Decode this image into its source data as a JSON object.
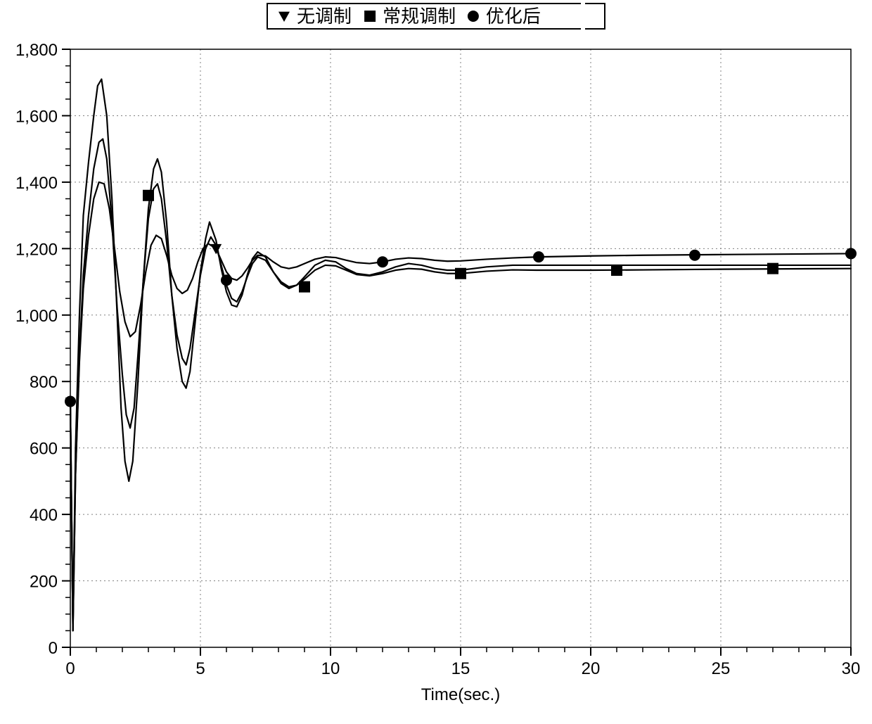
{
  "chart": {
    "type": "line",
    "background_color": "#ffffff",
    "grid_color": "#808080",
    "axis_color": "#000000",
    "series_color": "#000000",
    "xlabel": "Time(sec.)",
    "xlabel_fontsize": 24,
    "xlim": [
      0,
      30
    ],
    "xtick_step": 5,
    "x_minor_ticks": 5,
    "ylim": [
      0,
      1800
    ],
    "ytick_step": 200,
    "y_minor_ticks": 4,
    "tick_label_fontsize": 24,
    "line_width": 2.2,
    "marker_size": 8,
    "legend": {
      "items": [
        {
          "label": "无调制",
          "marker": "triangle-down"
        },
        {
          "label": "常规调制",
          "marker": "square"
        },
        {
          "label": "优化后",
          "marker": "circle"
        }
      ],
      "fontsize": 26,
      "border_color": "#000000",
      "position": "top-center"
    },
    "series": [
      {
        "name": "no_modulation",
        "marker": "triangle-down",
        "markers_x": [
          5.6
        ],
        "markers_y": [
          1200
        ],
        "data": [
          [
            0.0,
            740
          ],
          [
            0.1,
            50
          ],
          [
            0.2,
            600
          ],
          [
            0.35,
            1000
          ],
          [
            0.5,
            1300
          ],
          [
            0.7,
            1460
          ],
          [
            0.9,
            1600
          ],
          [
            1.05,
            1690
          ],
          [
            1.2,
            1710
          ],
          [
            1.4,
            1600
          ],
          [
            1.6,
            1350
          ],
          [
            1.8,
            1000
          ],
          [
            1.95,
            720
          ],
          [
            2.1,
            560
          ],
          [
            2.25,
            500
          ],
          [
            2.4,
            560
          ],
          [
            2.6,
            800
          ],
          [
            2.8,
            1100
          ],
          [
            3.0,
            1320
          ],
          [
            3.2,
            1440
          ],
          [
            3.35,
            1470
          ],
          [
            3.5,
            1430
          ],
          [
            3.7,
            1280
          ],
          [
            3.9,
            1060
          ],
          [
            4.1,
            900
          ],
          [
            4.3,
            800
          ],
          [
            4.45,
            780
          ],
          [
            4.6,
            830
          ],
          [
            4.8,
            980
          ],
          [
            5.0,
            1130
          ],
          [
            5.2,
            1230
          ],
          [
            5.35,
            1280
          ],
          [
            5.6,
            1225
          ],
          [
            5.8,
            1140
          ],
          [
            6.0,
            1070
          ],
          [
            6.2,
            1030
          ],
          [
            6.4,
            1025
          ],
          [
            6.6,
            1060
          ],
          [
            6.8,
            1120
          ],
          [
            7.0,
            1170
          ],
          [
            7.2,
            1190
          ],
          [
            7.5,
            1175
          ],
          [
            7.8,
            1130
          ],
          [
            8.1,
            1095
          ],
          [
            8.4,
            1080
          ],
          [
            8.7,
            1090
          ],
          [
            9.0,
            1115
          ],
          [
            9.4,
            1150
          ],
          [
            9.8,
            1165
          ],
          [
            10.2,
            1160
          ],
          [
            10.6,
            1140
          ],
          [
            11.0,
            1125
          ],
          [
            11.5,
            1120
          ],
          [
            12.0,
            1130
          ],
          [
            12.5,
            1145
          ],
          [
            13.0,
            1155
          ],
          [
            13.5,
            1150
          ],
          [
            14.0,
            1140
          ],
          [
            14.5,
            1135
          ],
          [
            15.0,
            1135
          ],
          [
            16.0,
            1145
          ],
          [
            17.0,
            1150
          ],
          [
            18.0,
            1150
          ],
          [
            20.0,
            1150
          ],
          [
            22.0,
            1150
          ],
          [
            25.0,
            1150
          ],
          [
            30.0,
            1150
          ]
        ]
      },
      {
        "name": "conventional",
        "marker": "square",
        "markers_x": [
          3.0,
          9.0,
          15.0,
          21.0,
          27.0
        ],
        "markers_y": [
          1360,
          1085,
          1125,
          1135,
          1140
        ],
        "data": [
          [
            0.0,
            740
          ],
          [
            0.1,
            50
          ],
          [
            0.2,
            520
          ],
          [
            0.35,
            880
          ],
          [
            0.5,
            1120
          ],
          [
            0.7,
            1300
          ],
          [
            0.9,
            1440
          ],
          [
            1.1,
            1520
          ],
          [
            1.25,
            1530
          ],
          [
            1.4,
            1470
          ],
          [
            1.6,
            1280
          ],
          [
            1.8,
            1020
          ],
          [
            2.0,
            820
          ],
          [
            2.15,
            700
          ],
          [
            2.3,
            660
          ],
          [
            2.45,
            720
          ],
          [
            2.6,
            880
          ],
          [
            2.8,
            1100
          ],
          [
            3.0,
            1290
          ],
          [
            3.2,
            1380
          ],
          [
            3.35,
            1395
          ],
          [
            3.5,
            1350
          ],
          [
            3.7,
            1220
          ],
          [
            3.9,
            1060
          ],
          [
            4.1,
            940
          ],
          [
            4.3,
            870
          ],
          [
            4.45,
            850
          ],
          [
            4.6,
            900
          ],
          [
            4.8,
            1010
          ],
          [
            5.0,
            1120
          ],
          [
            5.2,
            1200
          ],
          [
            5.4,
            1235
          ],
          [
            5.6,
            1210
          ],
          [
            5.8,
            1150
          ],
          [
            6.0,
            1090
          ],
          [
            6.2,
            1050
          ],
          [
            6.4,
            1040
          ],
          [
            6.6,
            1070
          ],
          [
            6.8,
            1115
          ],
          [
            7.0,
            1155
          ],
          [
            7.2,
            1175
          ],
          [
            7.5,
            1165
          ],
          [
            7.8,
            1130
          ],
          [
            8.1,
            1100
          ],
          [
            8.4,
            1085
          ],
          [
            8.7,
            1090
          ],
          [
            9.0,
            1108
          ],
          [
            9.4,
            1135
          ],
          [
            9.8,
            1150
          ],
          [
            10.2,
            1148
          ],
          [
            10.6,
            1135
          ],
          [
            11.0,
            1122
          ],
          [
            11.5,
            1118
          ],
          [
            12.0,
            1125
          ],
          [
            12.5,
            1135
          ],
          [
            13.0,
            1140
          ],
          [
            13.5,
            1138
          ],
          [
            14.0,
            1130
          ],
          [
            14.5,
            1125
          ],
          [
            15.0,
            1125
          ],
          [
            16.0,
            1132
          ],
          [
            17.0,
            1136
          ],
          [
            18.0,
            1135
          ],
          [
            20.0,
            1135
          ],
          [
            22.0,
            1136
          ],
          [
            25.0,
            1138
          ],
          [
            30.0,
            1140
          ]
        ]
      },
      {
        "name": "optimized",
        "marker": "circle",
        "markers_x": [
          0.0,
          6.0,
          12.0,
          18.0,
          24.0,
          30.0
        ],
        "markers_y": [
          740,
          1105,
          1160,
          1175,
          1180,
          1185
        ],
        "data": [
          [
            0.0,
            740
          ],
          [
            0.1,
            50
          ],
          [
            0.2,
            520
          ],
          [
            0.35,
            860
          ],
          [
            0.5,
            1080
          ],
          [
            0.7,
            1240
          ],
          [
            0.9,
            1350
          ],
          [
            1.1,
            1400
          ],
          [
            1.3,
            1395
          ],
          [
            1.5,
            1320
          ],
          [
            1.7,
            1200
          ],
          [
            1.9,
            1070
          ],
          [
            2.1,
            980
          ],
          [
            2.3,
            935
          ],
          [
            2.5,
            950
          ],
          [
            2.7,
            1030
          ],
          [
            2.9,
            1130
          ],
          [
            3.1,
            1210
          ],
          [
            3.3,
            1240
          ],
          [
            3.5,
            1230
          ],
          [
            3.7,
            1180
          ],
          [
            3.9,
            1120
          ],
          [
            4.1,
            1080
          ],
          [
            4.3,
            1065
          ],
          [
            4.5,
            1075
          ],
          [
            4.7,
            1110
          ],
          [
            4.9,
            1160
          ],
          [
            5.1,
            1200
          ],
          [
            5.3,
            1215
          ],
          [
            5.6,
            1200
          ],
          [
            5.8,
            1165
          ],
          [
            6.0,
            1130
          ],
          [
            6.2,
            1110
          ],
          [
            6.4,
            1105
          ],
          [
            6.6,
            1118
          ],
          [
            6.8,
            1140
          ],
          [
            7.0,
            1165
          ],
          [
            7.2,
            1180
          ],
          [
            7.5,
            1178
          ],
          [
            7.8,
            1160
          ],
          [
            8.1,
            1145
          ],
          [
            8.4,
            1140
          ],
          [
            8.7,
            1145
          ],
          [
            9.0,
            1155
          ],
          [
            9.4,
            1168
          ],
          [
            9.8,
            1175
          ],
          [
            10.2,
            1173
          ],
          [
            10.6,
            1165
          ],
          [
            11.0,
            1158
          ],
          [
            11.5,
            1155
          ],
          [
            12.0,
            1160
          ],
          [
            12.5,
            1168
          ],
          [
            13.0,
            1172
          ],
          [
            13.5,
            1170
          ],
          [
            14.0,
            1165
          ],
          [
            14.5,
            1162
          ],
          [
            15.0,
            1163
          ],
          [
            16.0,
            1168
          ],
          [
            17.0,
            1172
          ],
          [
            18.0,
            1175
          ],
          [
            20.0,
            1178
          ],
          [
            22.0,
            1180
          ],
          [
            25.0,
            1182
          ],
          [
            30.0,
            1185
          ]
        ]
      }
    ]
  }
}
